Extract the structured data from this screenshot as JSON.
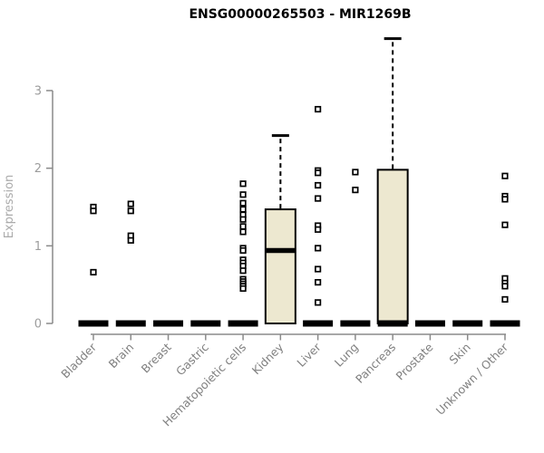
{
  "title": "ENSG00000265503 - MIR1269B",
  "chart_data": {
    "type": "boxplot",
    "title": "ENSG00000265503 - MIR1269B",
    "xlabel": "",
    "ylabel": "Expression",
    "ylim": [
      0,
      3.7
    ],
    "yticks": [
      0,
      1,
      2,
      3
    ],
    "grid": false,
    "legend": "none",
    "colors": {
      "box_fill": "#ede8d0",
      "box_stroke": "#000000",
      "median": "#000000",
      "outlier_stroke": "#000000",
      "outlier_fill": "#ffffff",
      "axis": "#8a8a8a",
      "y_tick_label": "#9c9c9c",
      "x_tick_label": "#7f7f7f",
      "ylabel_color": "#ababab",
      "title_color": "#000000",
      "background": "#ffffff"
    },
    "categories": [
      "Bladder",
      "Brain",
      "Breast",
      "Gastric",
      "Hematopoietic cells",
      "Kidney",
      "Liver",
      "Lung",
      "Pancreas",
      "Prostate",
      "Skin",
      "Unknown / Other"
    ],
    "series": [
      {
        "category": "Bladder",
        "q1": 0,
        "median": 0,
        "q3": 0,
        "whisker_low": 0,
        "whisker_high": 0,
        "outliers": [
          1.5,
          1.45,
          0.66
        ]
      },
      {
        "category": "Brain",
        "q1": 0,
        "median": 0,
        "q3": 0,
        "whisker_low": 0,
        "whisker_high": 0,
        "outliers": [
          1.54,
          1.45,
          1.13,
          1.07
        ]
      },
      {
        "category": "Breast",
        "q1": 0,
        "median": 0,
        "q3": 0,
        "whisker_low": 0,
        "whisker_high": 0,
        "outliers": []
      },
      {
        "category": "Gastric",
        "q1": 0,
        "median": 0,
        "q3": 0,
        "whisker_low": 0,
        "whisker_high": 0,
        "outliers": []
      },
      {
        "category": "Hematopoietic cells",
        "q1": 0,
        "median": 0,
        "q3": 0,
        "whisker_low": 0,
        "whisker_high": 0,
        "outliers": [
          1.8,
          1.66,
          1.55,
          1.47,
          1.4,
          1.34,
          1.25,
          1.18,
          0.97,
          0.94,
          0.82,
          0.78,
          0.74,
          0.68,
          0.57,
          0.54,
          0.51,
          0.48,
          0.45
        ]
      },
      {
        "category": "Kidney",
        "q1": 0,
        "median": 0.94,
        "q3": 1.47,
        "whisker_low": 0,
        "whisker_high": 2.42,
        "outliers": []
      },
      {
        "category": "Liver",
        "q1": 0,
        "median": 0,
        "q3": 0,
        "whisker_low": 0,
        "whisker_high": 0,
        "outliers": [
          2.76,
          1.97,
          1.94,
          1.78,
          1.61,
          1.26,
          1.21,
          0.97,
          0.7,
          0.53,
          0.27
        ]
      },
      {
        "category": "Lung",
        "q1": 0,
        "median": 0,
        "q3": 0,
        "whisker_low": 0,
        "whisker_high": 0,
        "outliers": [
          1.95,
          1.72
        ]
      },
      {
        "category": "Pancreas",
        "q1": 0,
        "median": 0,
        "q3": 1.98,
        "whisker_low": 0,
        "whisker_high": 3.67,
        "outliers": []
      },
      {
        "category": "Prostate",
        "q1": 0,
        "median": 0,
        "q3": 0,
        "whisker_low": 0,
        "whisker_high": 0,
        "outliers": []
      },
      {
        "category": "Skin",
        "q1": 0,
        "median": 0,
        "q3": 0,
        "whisker_low": 0,
        "whisker_high": 0,
        "outliers": []
      },
      {
        "category": "Unknown / Other",
        "q1": 0,
        "median": 0,
        "q3": 0,
        "whisker_low": 0,
        "whisker_high": 0,
        "outliers": [
          1.9,
          1.64,
          1.6,
          1.27,
          0.58,
          0.52,
          0.48,
          0.31
        ]
      }
    ]
  }
}
